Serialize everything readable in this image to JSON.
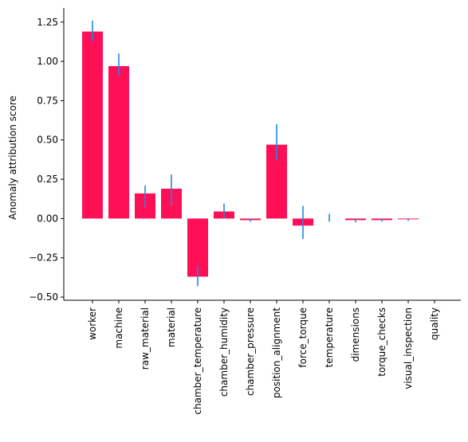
{
  "chart_data": {
    "type": "bar",
    "title": "",
    "xlabel": "",
    "ylabel": "Anomaly attribution score",
    "ylim": [
      -0.52,
      1.34
    ],
    "yticks": [
      "−0.50",
      "−0.25",
      "0.00",
      "0.25",
      "0.50",
      "0.75",
      "1.00",
      "1.25"
    ],
    "ytick_values": [
      -0.5,
      -0.25,
      0.0,
      0.25,
      0.5,
      0.75,
      1.0,
      1.25
    ],
    "grid": false,
    "categories": [
      "worker",
      "machine",
      "raw_material",
      "material",
      "chamber_temperature",
      "chamber_humidity",
      "chamber_pressure",
      "position_alignment",
      "force_torque",
      "temperature",
      "dimensions",
      "torque_checks",
      "visual_inspection",
      "quality"
    ],
    "values": [
      1.19,
      0.97,
      0.16,
      0.19,
      -0.37,
      0.045,
      -0.01,
      0.47,
      -0.045,
      0.0,
      -0.01,
      -0.01,
      -0.005,
      0.0
    ],
    "error_low": [
      1.13,
      0.91,
      0.07,
      0.08,
      -0.43,
      0.0,
      -0.02,
      0.37,
      -0.13,
      -0.02,
      -0.025,
      -0.02,
      -0.015,
      0.0
    ],
    "error_high": [
      1.26,
      1.05,
      0.21,
      0.28,
      -0.3,
      0.095,
      0.0,
      0.6,
      0.08,
      0.03,
      0.0,
      0.0,
      0.0,
      0.0
    ],
    "bar_color": "#ff0f56",
    "error_color": "#1e88e5",
    "axis_color": "#000000"
  }
}
